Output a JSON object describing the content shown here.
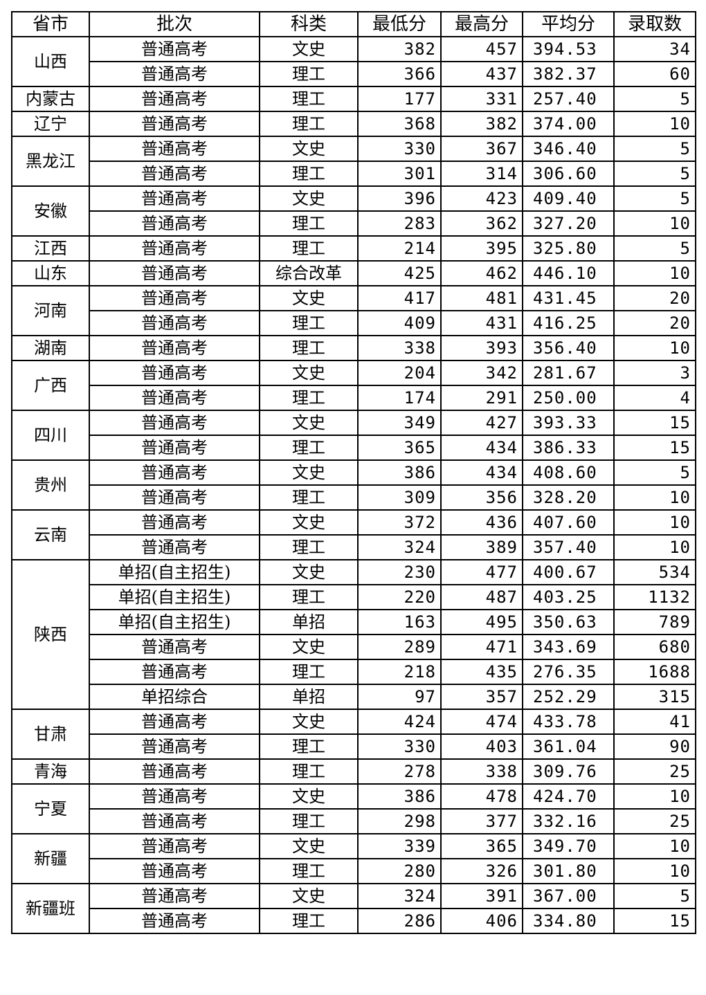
{
  "headers": [
    "省市",
    "批次",
    "科类",
    "最低分",
    "最高分",
    "平均分",
    "录取数"
  ],
  "groups": [
    {
      "province": "山西",
      "rows": [
        [
          "普通高考",
          "文史",
          "382",
          "457",
          "394.53",
          "34"
        ],
        [
          "普通高考",
          "理工",
          "366",
          "437",
          "382.37",
          "60"
        ]
      ]
    },
    {
      "province": "内蒙古",
      "rows": [
        [
          "普通高考",
          "理工",
          "177",
          "331",
          "257.40",
          "5"
        ]
      ]
    },
    {
      "province": "辽宁",
      "rows": [
        [
          "普通高考",
          "理工",
          "368",
          "382",
          "374.00",
          "10"
        ]
      ]
    },
    {
      "province": "黑龙江",
      "rows": [
        [
          "普通高考",
          "文史",
          "330",
          "367",
          "346.40",
          "5"
        ],
        [
          "普通高考",
          "理工",
          "301",
          "314",
          "306.60",
          "5"
        ]
      ]
    },
    {
      "province": "安徽",
      "rows": [
        [
          "普通高考",
          "文史",
          "396",
          "423",
          "409.40",
          "5"
        ],
        [
          "普通高考",
          "理工",
          "283",
          "362",
          "327.20",
          "10"
        ]
      ]
    },
    {
      "province": "江西",
      "rows": [
        [
          "普通高考",
          "理工",
          "214",
          "395",
          "325.80",
          "5"
        ]
      ]
    },
    {
      "province": "山东",
      "rows": [
        [
          "普通高考",
          "综合改革",
          "425",
          "462",
          "446.10",
          "10"
        ]
      ]
    },
    {
      "province": "河南",
      "rows": [
        [
          "普通高考",
          "文史",
          "417",
          "481",
          "431.45",
          "20"
        ],
        [
          "普通高考",
          "理工",
          "409",
          "431",
          "416.25",
          "20"
        ]
      ]
    },
    {
      "province": "湖南",
      "rows": [
        [
          "普通高考",
          "理工",
          "338",
          "393",
          "356.40",
          "10"
        ]
      ]
    },
    {
      "province": "广西",
      "rows": [
        [
          "普通高考",
          "文史",
          "204",
          "342",
          "281.67",
          "3"
        ],
        [
          "普通高考",
          "理工",
          "174",
          "291",
          "250.00",
          "4"
        ]
      ]
    },
    {
      "province": "四川",
      "rows": [
        [
          "普通高考",
          "文史",
          "349",
          "427",
          "393.33",
          "15"
        ],
        [
          "普通高考",
          "理工",
          "365",
          "434",
          "386.33",
          "15"
        ]
      ]
    },
    {
      "province": "贵州",
      "rows": [
        [
          "普通高考",
          "文史",
          "386",
          "434",
          "408.60",
          "5"
        ],
        [
          "普通高考",
          "理工",
          "309",
          "356",
          "328.20",
          "10"
        ]
      ]
    },
    {
      "province": "云南",
      "rows": [
        [
          "普通高考",
          "文史",
          "372",
          "436",
          "407.60",
          "10"
        ],
        [
          "普通高考",
          "理工",
          "324",
          "389",
          "357.40",
          "10"
        ]
      ]
    },
    {
      "province": "陕西",
      "rows": [
        [
          "单招(自主招生)",
          "文史",
          "230",
          "477",
          "400.67",
          "534"
        ],
        [
          "单招(自主招生)",
          "理工",
          "220",
          "487",
          "403.25",
          "1132"
        ],
        [
          "单招(自主招生)",
          "单招",
          "163",
          "495",
          "350.63",
          "789"
        ],
        [
          "普通高考",
          "文史",
          "289",
          "471",
          "343.69",
          "680"
        ],
        [
          "普通高考",
          "理工",
          "218",
          "435",
          "276.35",
          "1688"
        ],
        [
          "单招综合",
          "单招",
          "97",
          "357",
          "252.29",
          "315"
        ]
      ]
    },
    {
      "province": "甘肃",
      "rows": [
        [
          "普通高考",
          "文史",
          "424",
          "474",
          "433.78",
          "41"
        ],
        [
          "普通高考",
          "理工",
          "330",
          "403",
          "361.04",
          "90"
        ]
      ]
    },
    {
      "province": "青海",
      "rows": [
        [
          "普通高考",
          "理工",
          "278",
          "338",
          "309.76",
          "25"
        ]
      ]
    },
    {
      "province": "宁夏",
      "rows": [
        [
          "普通高考",
          "文史",
          "386",
          "478",
          "424.70",
          "10"
        ],
        [
          "普通高考",
          "理工",
          "298",
          "377",
          "332.16",
          "25"
        ]
      ]
    },
    {
      "province": "新疆",
      "rows": [
        [
          "普通高考",
          "文史",
          "339",
          "365",
          "349.70",
          "10"
        ],
        [
          "普通高考",
          "理工",
          "280",
          "326",
          "301.80",
          "10"
        ]
      ]
    },
    {
      "province": "新疆班",
      "rows": [
        [
          "普通高考",
          "文史",
          "324",
          "391",
          "367.00",
          "5"
        ],
        [
          "普通高考",
          "理工",
          "286",
          "406",
          "334.80",
          "15"
        ]
      ]
    }
  ]
}
